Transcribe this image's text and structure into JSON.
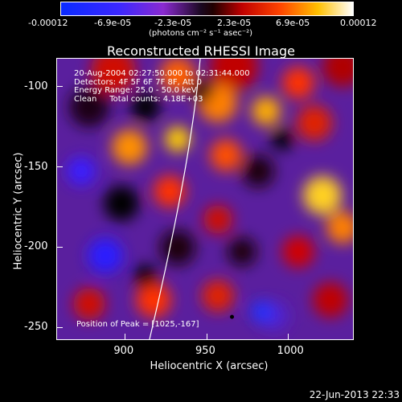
{
  "chart_data": {
    "type": "heatmap",
    "title": "Reconstructed RHESSI Image",
    "xlabel": "Heliocentric X (arcsec)",
    "ylabel": "Heliocentric Y (arcsec)",
    "xlim": [
      858,
      1040
    ],
    "ylim": [
      -258,
      -82
    ],
    "x_ticks": [
      900,
      950,
      1000
    ],
    "y_ticks": [
      -100,
      -150,
      -200,
      -250
    ],
    "colorbar": {
      "ticks": [
        "-0.00012",
        "-6.9e-05",
        "-2.3e-05",
        "2.3e-05",
        "6.9e-05",
        "0.00012"
      ],
      "units": "(photons cm⁻² s⁻¹ asec⁻²)",
      "range": [
        -0.00012,
        0.00012
      ]
    },
    "annotations": [
      "20-Aug-2004 02:27:50.000 to 02:31:44.000",
      "Detectors: 4F 5F 6F 7F 8F, Att 0",
      "Energy Range: 25.0 - 50.0 keV",
      "Clean     Total counts: 4.18E+03"
    ],
    "peak_label": "Position of Peak = [1025,-167]",
    "peak_position": [
      1025,
      -167
    ],
    "limb_marker": [
      965,
      -243
    ],
    "grid": false
  },
  "footer": {
    "date_stamp": "22-Jun-2013 22:33"
  },
  "colors": {
    "background": "#000000",
    "foreground": "#ffffff"
  }
}
